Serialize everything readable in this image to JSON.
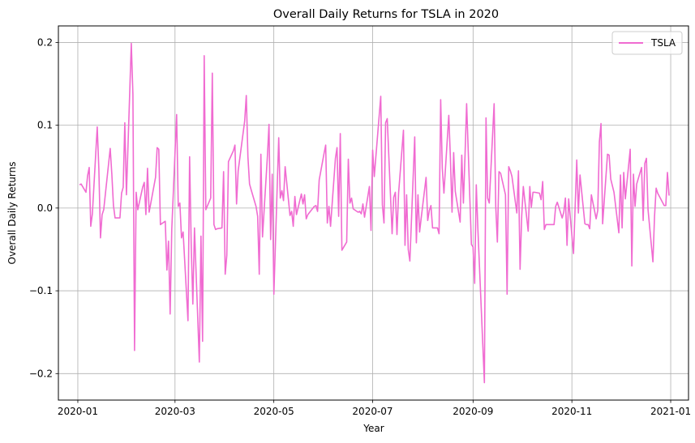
{
  "chart_data": {
    "type": "line",
    "title": "Overall Daily Returns for TSLA in 2020",
    "xlabel": "Year",
    "ylabel": "Overall Daily Returns",
    "x_ticks": [
      "2020-01",
      "2020-03",
      "2020-05",
      "2020-07",
      "2020-09",
      "2020-11",
      "2021-01"
    ],
    "y_ticks": [
      "0.2",
      "0.1",
      "0.0",
      "−0.1",
      "−0.2"
    ],
    "xlim": [
      "2019-12-20",
      "2021-01-12"
    ],
    "ylim": [
      -0.232,
      0.22
    ],
    "grid": true,
    "legend_position": "top-right",
    "series": [
      {
        "name": "TSLA",
        "color": "#f06bd1",
        "points": [
          [
            "2020-01-02",
            0.028
          ],
          [
            "2020-01-03",
            0.029
          ],
          [
            "2020-01-06",
            0.019
          ],
          [
            "2020-01-07",
            0.039
          ],
          [
            "2020-01-08",
            0.049
          ],
          [
            "2020-01-09",
            -0.022
          ],
          [
            "2020-01-10",
            -0.007
          ],
          [
            "2020-01-13",
            0.098
          ],
          [
            "2020-01-14",
            0.047
          ],
          [
            "2020-01-15",
            -0.036
          ],
          [
            "2020-01-16",
            -0.008
          ],
          [
            "2020-01-17",
            -0.002
          ],
          [
            "2020-01-21",
            0.072
          ],
          [
            "2020-01-22",
            0.041
          ],
          [
            "2020-01-23",
            0.003
          ],
          [
            "2020-01-24",
            -0.012
          ],
          [
            "2020-01-27",
            -0.012
          ],
          [
            "2020-01-28",
            0.018
          ],
          [
            "2020-01-29",
            0.025
          ],
          [
            "2020-01-30",
            0.103
          ],
          [
            "2020-01-31",
            0.016
          ],
          [
            "2020-02-03",
            0.199
          ],
          [
            "2020-02-04",
            0.137
          ],
          [
            "2020-02-05",
            -0.172
          ],
          [
            "2020-02-06",
            0.019
          ],
          [
            "2020-02-07",
            -0.002
          ],
          [
            "2020-02-10",
            0.025
          ],
          [
            "2020-02-11",
            0.031
          ],
          [
            "2020-02-12",
            -0.008
          ],
          [
            "2020-02-13",
            0.048
          ],
          [
            "2020-02-14",
            -0.005
          ],
          [
            "2020-02-18",
            0.037
          ],
          [
            "2020-02-19",
            0.073
          ],
          [
            "2020-02-20",
            0.071
          ],
          [
            "2020-02-21",
            -0.02
          ],
          [
            "2020-02-24",
            -0.016
          ],
          [
            "2020-02-25",
            -0.075
          ],
          [
            "2020-02-26",
            -0.04
          ],
          [
            "2020-02-27",
            -0.128
          ],
          [
            "2020-02-28",
            -0.026
          ],
          [
            "2020-03-02",
            0.113
          ],
          [
            "2020-03-03",
            0.002
          ],
          [
            "2020-03-04",
            0.006
          ],
          [
            "2020-03-05",
            -0.036
          ],
          [
            "2020-03-06",
            -0.029
          ],
          [
            "2020-03-09",
            -0.136
          ],
          [
            "2020-03-10",
            0.062
          ],
          [
            "2020-03-11",
            -0.045
          ],
          [
            "2020-03-12",
            -0.116
          ],
          [
            "2020-03-13",
            -0.024
          ],
          [
            "2020-03-16",
            -0.186
          ],
          [
            "2020-03-17",
            -0.034
          ],
          [
            "2020-03-18",
            -0.161
          ],
          [
            "2020-03-19",
            0.184
          ],
          [
            "2020-03-20",
            -0.002
          ],
          [
            "2020-03-23",
            0.012
          ],
          [
            "2020-03-24",
            0.163
          ],
          [
            "2020-03-25",
            -0.02
          ],
          [
            "2020-03-26",
            -0.026
          ],
          [
            "2020-03-27",
            -0.025
          ],
          [
            "2020-03-30",
            -0.024
          ],
          [
            "2020-03-31",
            0.044
          ],
          [
            "2020-04-01",
            -0.08
          ],
          [
            "2020-04-02",
            -0.057
          ],
          [
            "2020-04-03",
            0.056
          ],
          [
            "2020-04-06",
            0.069
          ],
          [
            "2020-04-07",
            0.076
          ],
          [
            "2020-04-08",
            0.005
          ],
          [
            "2020-04-09",
            0.045
          ],
          [
            "2020-04-13",
            0.105
          ],
          [
            "2020-04-14",
            0.136
          ],
          [
            "2020-04-15",
            0.062
          ],
          [
            "2020-04-16",
            0.029
          ],
          [
            "2020-04-17",
            0.022
          ],
          [
            "2020-04-20",
            0.002
          ],
          [
            "2020-04-21",
            -0.01
          ],
          [
            "2020-04-22",
            -0.08
          ],
          [
            "2020-04-23",
            0.065
          ],
          [
            "2020-04-24",
            -0.035
          ],
          [
            "2020-04-27",
            0.062
          ],
          [
            "2020-04-28",
            0.101
          ],
          [
            "2020-04-29",
            -0.038
          ],
          [
            "2020-04-30",
            0.041
          ],
          [
            "2020-05-01",
            -0.104
          ],
          [
            "2020-05-04",
            0.085
          ],
          [
            "2020-05-05",
            0.012
          ],
          [
            "2020-05-06",
            0.021
          ],
          [
            "2020-05-07",
            0.009
          ],
          [
            "2020-05-08",
            0.05
          ],
          [
            "2020-05-11",
            -0.009
          ],
          [
            "2020-05-12",
            -0.004
          ],
          [
            "2020-05-13",
            -0.022
          ],
          [
            "2020-05-14",
            0.014
          ],
          [
            "2020-05-15",
            -0.008
          ],
          [
            "2020-05-18",
            0.017
          ],
          [
            "2020-05-19",
            0.005
          ],
          [
            "2020-05-20",
            0.016
          ],
          [
            "2020-05-21",
            -0.013
          ],
          [
            "2020-05-22",
            -0.008
          ],
          [
            "2020-05-26",
            0.002
          ],
          [
            "2020-05-27",
            0.003
          ],
          [
            "2020-05-28",
            -0.004
          ],
          [
            "2020-05-29",
            0.034
          ],
          [
            "2020-06-01",
            0.066
          ],
          [
            "2020-06-02",
            0.076
          ],
          [
            "2020-06-03",
            -0.018
          ],
          [
            "2020-06-04",
            0.002
          ],
          [
            "2020-06-05",
            -0.022
          ],
          [
            "2020-06-08",
            0.06
          ],
          [
            "2020-06-09",
            0.073
          ],
          [
            "2020-06-10",
            -0.01
          ],
          [
            "2020-06-11",
            0.09
          ],
          [
            "2020-06-12",
            -0.051
          ],
          [
            "2020-06-15",
            -0.041
          ],
          [
            "2020-06-16",
            0.059
          ],
          [
            "2020-06-17",
            0.006
          ],
          [
            "2020-06-18",
            0.012
          ],
          [
            "2020-06-19",
            -0.001
          ],
          [
            "2020-06-22",
            -0.005
          ],
          [
            "2020-06-23",
            -0.004
          ],
          [
            "2020-06-24",
            -0.007
          ],
          [
            "2020-06-25",
            0.005
          ],
          [
            "2020-06-26",
            -0.011
          ],
          [
            "2020-06-29",
            0.026
          ],
          [
            "2020-06-30",
            -0.027
          ],
          [
            "2020-07-01",
            0.07
          ],
          [
            "2020-07-02",
            0.038
          ],
          [
            "2020-07-06",
            0.135
          ],
          [
            "2020-07-07",
            0.004
          ],
          [
            "2020-07-08",
            -0.018
          ],
          [
            "2020-07-09",
            0.103
          ],
          [
            "2020-07-10",
            0.108
          ],
          [
            "2020-07-13",
            -0.031
          ],
          [
            "2020-07-14",
            0.013
          ],
          [
            "2020-07-15",
            0.019
          ],
          [
            "2020-07-16",
            -0.032
          ],
          [
            "2020-07-17",
            0.018
          ],
          [
            "2020-07-20",
            0.094
          ],
          [
            "2020-07-21",
            -0.045
          ],
          [
            "2020-07-22",
            0.016
          ],
          [
            "2020-07-23",
            -0.05
          ],
          [
            "2020-07-24",
            -0.064
          ],
          [
            "2020-07-27",
            0.086
          ],
          [
            "2020-07-28",
            -0.042
          ],
          [
            "2020-07-29",
            0.016
          ],
          [
            "2020-07-30",
            -0.029
          ],
          [
            "2020-07-31",
            -0.012
          ],
          [
            "2020-08-03",
            0.037
          ],
          [
            "2020-08-04",
            -0.015
          ],
          [
            "2020-08-05",
            -0.003
          ],
          [
            "2020-08-06",
            0.003
          ],
          [
            "2020-08-07",
            -0.024
          ],
          [
            "2020-08-10",
            -0.024
          ],
          [
            "2020-08-11",
            -0.031
          ],
          [
            "2020-08-12",
            0.131
          ],
          [
            "2020-08-13",
            0.048
          ],
          [
            "2020-08-14",
            0.018
          ],
          [
            "2020-08-17",
            0.112
          ],
          [
            "2020-08-18",
            0.06
          ],
          [
            "2020-08-19",
            -0.005
          ],
          [
            "2020-08-20",
            0.067
          ],
          [
            "2020-08-21",
            0.02
          ],
          [
            "2020-08-24",
            -0.017
          ],
          [
            "2020-08-25",
            0.064
          ],
          [
            "2020-08-26",
            0.006
          ],
          [
            "2020-08-27",
            0.063
          ],
          [
            "2020-08-28",
            0.126
          ],
          [
            "2020-08-31",
            -0.044
          ],
          [
            "2020-09-01",
            -0.047
          ],
          [
            "2020-09-02",
            -0.091
          ],
          [
            "2020-09-03",
            0.028
          ],
          [
            "2020-09-04",
            -0.026
          ],
          [
            "2020-09-08",
            -0.211
          ],
          [
            "2020-09-09",
            0.109
          ],
          [
            "2020-09-10",
            0.012
          ],
          [
            "2020-09-11",
            0.006
          ],
          [
            "2020-09-14",
            0.126
          ],
          [
            "2020-09-15",
            0.002
          ],
          [
            "2020-09-16",
            -0.041
          ],
          [
            "2020-09-17",
            0.044
          ],
          [
            "2020-09-18",
            0.042
          ],
          [
            "2020-09-21",
            0.016
          ],
          [
            "2020-09-22",
            -0.104
          ],
          [
            "2020-09-23",
            0.05
          ],
          [
            "2020-09-24",
            0.045
          ],
          [
            "2020-09-25",
            0.038
          ],
          [
            "2020-09-28",
            -0.006
          ],
          [
            "2020-09-29",
            0.045
          ],
          [
            "2020-09-30",
            -0.074
          ],
          [
            "2020-10-01",
            -0.01
          ],
          [
            "2020-10-02",
            0.026
          ],
          [
            "2020-10-05",
            -0.028
          ],
          [
            "2020-10-06",
            0.026
          ],
          [
            "2020-10-07",
            0.001
          ],
          [
            "2020-10-08",
            0.019
          ],
          [
            "2020-10-09",
            0.019
          ],
          [
            "2020-10-12",
            0.018
          ],
          [
            "2020-10-13",
            0.01
          ],
          [
            "2020-10-14",
            0.032
          ],
          [
            "2020-10-15",
            -0.026
          ],
          [
            "2020-10-16",
            -0.02
          ],
          [
            "2020-10-19",
            -0.02
          ],
          [
            "2020-10-20",
            -0.02
          ],
          [
            "2020-10-21",
            -0.02
          ],
          [
            "2020-10-22",
            0.002
          ],
          [
            "2020-10-23",
            0.007
          ],
          [
            "2020-10-26",
            -0.012
          ],
          [
            "2020-10-27",
            -0.005
          ],
          [
            "2020-10-28",
            0.012
          ],
          [
            "2020-10-29",
            -0.045
          ],
          [
            "2020-10-30",
            0.011
          ],
          [
            "2020-11-02",
            -0.055
          ],
          [
            "2020-11-03",
            0.001
          ],
          [
            "2020-11-04",
            0.058
          ],
          [
            "2020-11-05",
            -0.006
          ],
          [
            "2020-11-06",
            0.04
          ],
          [
            "2020-11-09",
            -0.019
          ],
          [
            "2020-11-10",
            -0.02
          ],
          [
            "2020-11-11",
            -0.02
          ],
          [
            "2020-11-12",
            -0.025
          ],
          [
            "2020-11-13",
            0.016
          ],
          [
            "2020-11-16",
            -0.013
          ],
          [
            "2020-11-17",
            -0.003
          ],
          [
            "2020-11-18",
            0.08
          ],
          [
            "2020-11-19",
            0.102
          ],
          [
            "2020-11-20",
            -0.019
          ],
          [
            "2020-11-23",
            0.065
          ],
          [
            "2020-11-24",
            0.064
          ],
          [
            "2020-11-25",
            0.035
          ],
          [
            "2020-11-27",
            0.019
          ],
          [
            "2020-11-30",
            -0.03
          ],
          [
            "2020-12-01",
            0.04
          ],
          [
            "2020-12-02",
            -0.024
          ],
          [
            "2020-12-03",
            0.043
          ],
          [
            "2020-12-04",
            0.011
          ],
          [
            "2020-12-07",
            0.071
          ],
          [
            "2020-12-08",
            -0.07
          ],
          [
            "2020-12-09",
            0.041
          ],
          [
            "2020-12-10",
            0.002
          ],
          [
            "2020-12-11",
            0.029
          ],
          [
            "2020-12-14",
            0.049
          ],
          [
            "2020-12-15",
            -0.015
          ],
          [
            "2020-12-16",
            0.054
          ],
          [
            "2020-12-17",
            0.06
          ],
          [
            "2020-12-18",
            -0.002
          ],
          [
            "2020-12-21",
            -0.065
          ],
          [
            "2020-12-22",
            -0.01
          ],
          [
            "2020-12-23",
            0.024
          ],
          [
            "2020-12-24",
            0.018
          ],
          [
            "2020-12-28",
            0.003
          ],
          [
            "2020-12-29",
            0.003
          ],
          [
            "2020-12-30",
            0.043
          ],
          [
            "2020-12-31",
            0.015
          ]
        ]
      }
    ]
  }
}
